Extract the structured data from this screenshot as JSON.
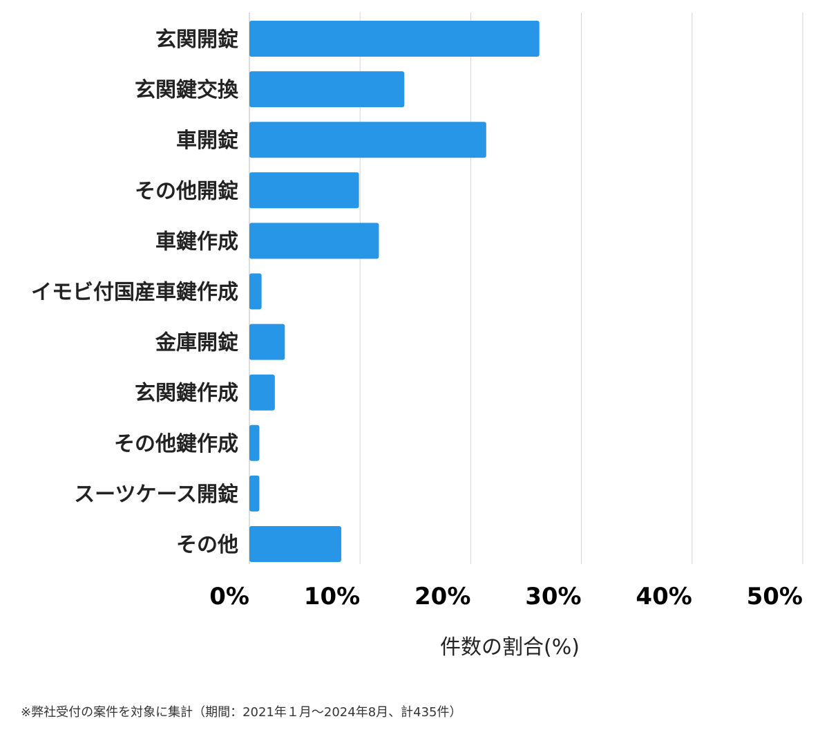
{
  "chart_data": {
    "type": "bar",
    "orientation": "horizontal",
    "categories": [
      "玄関開錠",
      "玄関鍵交換",
      "車開錠",
      "その他開錠",
      "車鍵作成",
      "イモビ付国産車鍵作成",
      "金庫開錠",
      "玄関鍵作成",
      "その他鍵作成",
      "スーツケース開錠",
      "その他"
    ],
    "values": [
      26.2,
      14.0,
      21.4,
      9.9,
      11.7,
      1.1,
      3.2,
      2.3,
      0.9,
      0.9,
      8.3
    ],
    "xlim": [
      0,
      50
    ],
    "x_ticks": [
      "0%",
      "10%",
      "20%",
      "30%",
      "40%",
      "50%"
    ],
    "xlabel": "件数の割合(%)",
    "ylabel": "",
    "grid": "vertical",
    "bar_color": "#2896e6"
  },
  "footnote": "※弊社受付の案件を対象に集計（期間：2021年１月～2024年8月、計435件）"
}
